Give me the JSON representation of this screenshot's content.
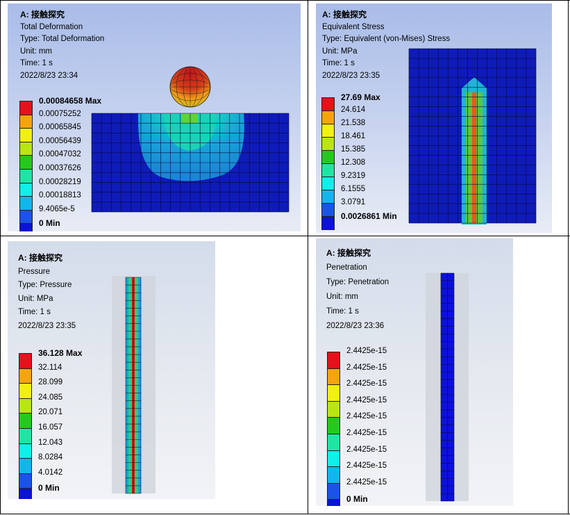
{
  "panels": [
    {
      "title": "A: 接触探究",
      "result": "Total Deformation",
      "type": "Type: Total Deformation",
      "unit": "Unit: mm",
      "time": "Time: 1 s",
      "date": "2022/8/23 23:34",
      "legend": [
        "0.00084658 Max",
        "0.00075252",
        "0.00065845",
        "0.00056439",
        "0.00047032",
        "0.00037626",
        "0.00028219",
        "0.00018813",
        "9.4065e-5",
        "0 Min"
      ]
    },
    {
      "title": "A: 接触探究",
      "result": "Equivalent Stress",
      "type": "Type: Equivalent (von-Mises) Stress",
      "unit": "Unit: MPa",
      "time": "Time: 1 s",
      "date": "2022/8/23 23:35",
      "legend": [
        "27.69 Max",
        "24.614",
        "21.538",
        "18.461",
        "15.385",
        "12.308",
        "9.2319",
        "6.1555",
        "3.0791",
        "0.0026861 Min"
      ]
    },
    {
      "title": "A: 接触探究",
      "result": "Pressure",
      "type": "Type: Pressure",
      "unit": "Unit: MPa",
      "time": "Time: 1 s",
      "date": "2022/8/23 23:35",
      "legend": [
        "36.128 Max",
        "32.114",
        "28.099",
        "24.085",
        "20.071",
        "16.057",
        "12.043",
        "8.0284",
        "4.0142",
        "0 Min"
      ]
    },
    {
      "title": "A: 接触探究",
      "result": "Penetration",
      "type": "Type: Penetration",
      "unit": "Unit: mm",
      "time": "Time: 1 s",
      "date": "2022/8/23 23:36",
      "legend": [
        "2.4425e-15",
        "2.4425e-15",
        "2.4425e-15",
        "2.4425e-15",
        "2.4425e-15",
        "2.4425e-15",
        "2.4425e-15",
        "2.4425e-15",
        "2.4425e-15",
        "0 Min"
      ]
    }
  ],
  "legend_colors": [
    "#e3121b",
    "#f5a40f",
    "#f2ef12",
    "#b9e512",
    "#25c91e",
    "#1fe5a4",
    "#10f0e8",
    "#11b6ee",
    "#1a53e8",
    "#0c12d6"
  ],
  "mesh_color": "#1b2ba6"
}
